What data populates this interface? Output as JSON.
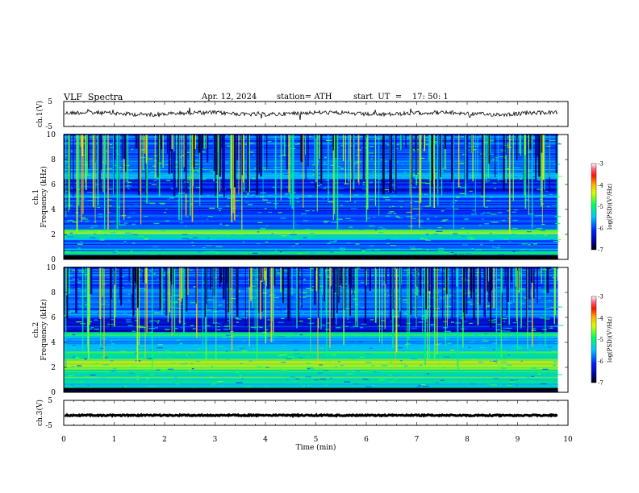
{
  "header": {
    "title": "VLF  Spectra",
    "date": "Apr. 12, 2024",
    "station": "station= ATH",
    "start": "start  UT  =    17: 50: 1"
  },
  "chart_data": [
    {
      "type": "line",
      "panel": "ch1-waveform",
      "ylabel": "ch.1(V)",
      "ylim": [
        -5,
        5
      ],
      "y_ticks": [
        "5",
        "-5"
      ],
      "xlim": [
        0,
        10
      ],
      "approx_level": 0.2,
      "color": "#000000"
    },
    {
      "type": "heatmap",
      "panel": "ch1-spectrogram",
      "ylabel": "ch.1\nFrequency (kHz)",
      "ylim": [
        0,
        10
      ],
      "y_ticks": [
        "0",
        "2",
        "4",
        "6",
        "8",
        "10"
      ],
      "xlim": [
        0,
        9.8
      ],
      "colorbar": {
        "label": "log(PSD)(V²/Hz)",
        "range": [
          -7,
          -3
        ],
        "ticks": [
          "-3",
          "-4",
          "-5",
          "-6",
          "-7"
        ]
      }
    },
    {
      "type": "heatmap",
      "panel": "ch2-spectrogram",
      "ylabel": "ch.2\nFrequency (kHz)",
      "ylim": [
        0,
        10
      ],
      "y_ticks": [
        "0",
        "2",
        "4",
        "6",
        "8",
        "10"
      ],
      "xlim": [
        0,
        9.8
      ],
      "colorbar": {
        "label": "log(PSD)(V²/Hz)",
        "range": [
          -7,
          -3
        ],
        "ticks": [
          "-3",
          "-4",
          "-5",
          "-6",
          "-7"
        ]
      }
    },
    {
      "type": "line",
      "panel": "ch3-waveform",
      "ylabel": "ch.3(V)",
      "ylim": [
        -5,
        5
      ],
      "y_ticks": [
        "5",
        "-5"
      ],
      "xlim": [
        0,
        10
      ],
      "approx_level": -1.0,
      "color": "#000000"
    }
  ],
  "x_axis": {
    "label": "Time  (min)",
    "ticks": [
      "0",
      "1",
      "2",
      "3",
      "4",
      "5",
      "6",
      "7",
      "8",
      "9",
      "10"
    ]
  }
}
